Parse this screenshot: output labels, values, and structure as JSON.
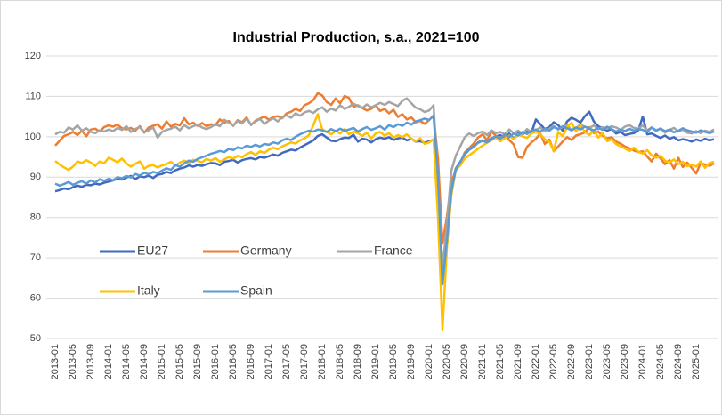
{
  "chart_data": {
    "type": "line",
    "title": "Industrial Production, s.a., 2021=100",
    "categories": [
      "2013-01",
      null,
      null,
      null,
      "2013-05",
      null,
      null,
      null,
      "2013-09",
      null,
      null,
      null,
      "2014-01",
      null,
      null,
      null,
      "2014-05",
      null,
      null,
      null,
      "2014-09",
      null,
      null,
      null,
      "2015-01",
      null,
      null,
      null,
      "2015-05",
      null,
      null,
      null,
      "2015-09",
      null,
      null,
      null,
      "2016-01",
      null,
      null,
      null,
      "2016-05",
      null,
      null,
      null,
      "2016-09",
      null,
      null,
      null,
      "2017-01",
      null,
      null,
      null,
      "2017-05",
      null,
      null,
      null,
      "2017-09",
      null,
      null,
      null,
      "2018-01",
      null,
      null,
      null,
      "2018-05",
      null,
      null,
      null,
      "2018-09",
      null,
      null,
      null,
      "2019-01",
      null,
      null,
      null,
      "2019-05",
      null,
      null,
      null,
      "2019-09",
      null,
      null,
      null,
      "2020-01",
      null,
      null,
      null,
      "2020-05",
      null,
      null,
      null,
      "2020-09",
      null,
      null,
      null,
      "2021-01",
      null,
      null,
      null,
      "2021-05",
      null,
      null,
      null,
      "2021-09",
      null,
      null,
      null,
      "2022-01",
      null,
      null,
      null,
      "2022-05",
      null,
      null,
      null,
      "2022-09",
      null,
      null,
      null,
      "2023-01",
      null,
      null,
      null,
      "2023-05",
      null,
      null,
      null,
      "2023-09",
      null,
      null,
      null,
      "2024-01",
      null,
      null,
      null,
      "2024-05",
      null,
      null,
      null,
      "2024-09",
      null,
      null,
      null,
      "2025-01",
      null,
      null,
      null,
      null
    ],
    "series": [
      {
        "name": "EU27",
        "color": "#4169c0",
        "values": [
          86.5,
          86.8,
          87.2,
          87.0,
          87.5,
          87.9,
          87.6,
          88.1,
          88.0,
          88.4,
          88.2,
          88.6,
          88.9,
          89.2,
          89.6,
          89.4,
          89.9,
          90.3,
          89.5,
          90.2,
          90.0,
          90.4,
          89.8,
          90.6,
          90.8,
          91.3,
          91.0,
          91.7,
          92.1,
          92.4,
          92.9,
          92.6,
          93.0,
          92.8,
          93.2,
          93.5,
          93.4,
          93.0,
          93.8,
          94.0,
          94.3,
          93.6,
          94.2,
          94.5,
          94.7,
          94.4,
          95.0,
          94.8,
          95.2,
          95.6,
          95.3,
          96.0,
          96.4,
          96.8,
          96.6,
          97.3,
          97.9,
          98.5,
          99.1,
          100.2,
          100.6,
          99.8,
          99.0,
          98.9,
          99.4,
          99.8,
          99.7,
          100.5,
          98.8,
          99.5,
          99.3,
          98.6,
          99.4,
          99.8,
          99.5,
          99.9,
          99.2,
          99.6,
          99.8,
          99.1,
          99.5,
          98.8,
          98.9,
          98.5,
          98.9,
          99.3,
          88.5,
          64.2,
          75.8,
          87.9,
          92.1,
          93.8,
          95.6,
          96.8,
          97.5,
          98.6,
          99.1,
          98.7,
          99.6,
          100.1,
          100.4,
          99.7,
          100.8,
          99.5,
          100.9,
          100.6,
          101.3,
          101.0,
          104.3,
          103.1,
          101.9,
          102.4,
          103.6,
          102.9,
          101.5,
          103.8,
          104.7,
          104.2,
          103.5,
          105.1,
          106.2,
          103.8,
          102.6,
          102.1,
          101.5,
          101.9,
          100.8,
          101.2,
          100.4,
          100.7,
          100.9,
          101.6,
          105.0,
          100.6,
          100.8,
          100.2,
          99.7,
          100.3,
          99.5,
          99.9,
          99.1,
          99.4,
          99.2,
          98.8,
          99.3,
          99.0,
          99.5,
          99.1,
          99.4
        ]
      },
      {
        "name": "Germany",
        "color": "#ed7d31",
        "values": [
          97.8,
          99.0,
          100.2,
          100.6,
          101.2,
          100.4,
          101.5,
          100.1,
          101.8,
          102.0,
          101.3,
          102.4,
          102.8,
          102.5,
          103.0,
          102.1,
          101.8,
          102.2,
          101.5,
          102.6,
          101.0,
          102.3,
          102.7,
          103.1,
          102.0,
          103.8,
          102.5,
          103.2,
          102.8,
          104.6,
          103.1,
          103.5,
          102.7,
          103.4,
          102.6,
          103.1,
          102.9,
          104.3,
          103.5,
          103.9,
          102.7,
          104.1,
          103.6,
          104.8,
          102.9,
          104.0,
          104.5,
          105.0,
          104.2,
          104.9,
          105.1,
          104.6,
          105.8,
          106.2,
          106.9,
          106.4,
          107.8,
          108.3,
          109.1,
          110.8,
          110.2,
          108.6,
          107.9,
          109.5,
          108.3,
          110.1,
          109.6,
          107.4,
          107.8,
          107.1,
          106.5,
          106.9,
          107.8,
          106.4,
          106.9,
          105.8,
          106.7,
          104.9,
          105.6,
          104.3,
          104.8,
          103.6,
          103.9,
          103.2,
          104.1,
          105.3,
          94.6,
          73.5,
          80.2,
          88.9,
          91.6,
          93.4,
          96.1,
          97.2,
          98.3,
          99.8,
          100.6,
          99.1,
          101.3,
          100.2,
          99.6,
          100.4,
          99.2,
          98.1,
          95.0,
          94.8,
          97.5,
          98.6,
          99.5,
          100.8,
          98.2,
          99.3,
          96.4,
          97.6,
          98.8,
          99.9,
          99.2,
          100.3,
          100.6,
          101.1,
          102.4,
          100.9,
          101.3,
          100.2,
          99.6,
          99.9,
          98.8,
          98.3,
          97.6,
          97.1,
          96.6,
          96.2,
          96.4,
          95.1,
          93.9,
          95.8,
          94.6,
          93.2,
          94.2,
          92.1,
          94.8,
          92.5,
          93.6,
          92.3,
          90.9,
          93.5,
          93.1,
          92.8,
          93.4
        ]
      },
      {
        "name": "France",
        "color": "#a5a5a5",
        "values": [
          100.6,
          101.2,
          101.0,
          102.3,
          101.8,
          102.8,
          101.5,
          102.1,
          101.2,
          100.9,
          101.6,
          101.3,
          101.8,
          101.4,
          102.2,
          101.7,
          102.6,
          101.2,
          101.9,
          102.4,
          101.1,
          101.6,
          102.3,
          99.8,
          101.2,
          101.7,
          102.0,
          102.5,
          101.6,
          102.9,
          102.1,
          102.6,
          103.0,
          102.3,
          101.9,
          102.4,
          103.1,
          102.6,
          104.2,
          103.5,
          102.8,
          103.9,
          103.3,
          104.5,
          103.0,
          103.8,
          104.4,
          103.2,
          104.0,
          104.6,
          103.8,
          104.9,
          105.3,
          104.7,
          105.8,
          105.2,
          106.0,
          106.4,
          105.9,
          106.8,
          107.3,
          106.2,
          107.0,
          106.5,
          107.8,
          106.9,
          107.4,
          108.2,
          107.6,
          107.1,
          108.0,
          107.3,
          107.8,
          108.4,
          107.9,
          108.6,
          108.1,
          107.6,
          108.9,
          109.5,
          108.3,
          107.2,
          106.8,
          106.1,
          106.5,
          107.8,
          89.4,
          67.2,
          78.4,
          91.6,
          95.3,
          97.6,
          99.9,
          100.8,
          100.2,
          100.9,
          101.3,
          100.4,
          101.6,
          100.9,
          101.2,
          100.6,
          101.8,
          100.9,
          101.5,
          100.7,
          101.9,
          101.1,
          101.6,
          102.3,
          101.4,
          102.0,
          102.7,
          101.8,
          102.4,
          102.9,
          101.6,
          102.2,
          103.0,
          102.5,
          102.1,
          102.8,
          101.9,
          102.4,
          102.0,
          102.6,
          102.3,
          101.7,
          102.5,
          102.9,
          102.2,
          102.0,
          102.8,
          101.6,
          102.3,
          101.4,
          102.1,
          101.0,
          101.7,
          102.2,
          101.3,
          101.8,
          101.0,
          100.8,
          101.4,
          100.9,
          101.5,
          101.2,
          101.8
        ]
      },
      {
        "name": "Italy",
        "color": "#ffc000",
        "values": [
          94.0,
          93.1,
          92.4,
          91.8,
          92.6,
          93.9,
          93.5,
          94.2,
          93.6,
          92.8,
          93.9,
          93.4,
          94.8,
          94.3,
          93.7,
          94.6,
          93.4,
          92.6,
          93.3,
          93.9,
          92.1,
          92.8,
          93.0,
          92.4,
          92.9,
          93.2,
          93.8,
          92.9,
          93.6,
          94.1,
          93.5,
          94.3,
          94.0,
          93.7,
          94.5,
          94.1,
          94.7,
          93.8,
          94.4,
          95.0,
          94.6,
          95.3,
          94.9,
          95.7,
          96.2,
          95.5,
          96.4,
          96.0,
          96.8,
          97.3,
          96.9,
          97.6,
          98.1,
          98.6,
          98.3,
          99.1,
          99.6,
          100.4,
          102.9,
          105.6,
          101.8,
          101.2,
          100.6,
          101.5,
          100.8,
          101.9,
          100.6,
          101.3,
          100.9,
          100.2,
          101.0,
          99.6,
          100.8,
          101.2,
          100.3,
          100.9,
          99.8,
          100.4,
          99.9,
          100.6,
          99.5,
          98.9,
          99.6,
          98.2,
          98.6,
          99.4,
          80.1,
          52.2,
          72.4,
          85.6,
          91.8,
          92.9,
          94.6,
          95.4,
          96.2,
          97.0,
          97.8,
          98.5,
          99.1,
          99.8,
          98.9,
          99.6,
          100.3,
          99.4,
          100.6,
          100.1,
          99.7,
          100.8,
          101.3,
          100.6,
          99.4,
          98.8,
          96.5,
          101.2,
          100.1,
          102.4,
          103.5,
          101.3,
          102.8,
          101.2,
          100.4,
          101.6,
          99.8,
          100.9,
          98.9,
          99.4,
          98.2,
          97.6,
          97.1,
          96.4,
          97.3,
          96.3,
          95.8,
          96.7,
          95.4,
          94.8,
          95.3,
          94.1,
          93.6,
          94.4,
          93.2,
          93.8,
          92.7,
          93.1,
          92.6,
          93.9,
          92.3,
          93.5,
          93.8
        ]
      },
      {
        "name": "Spain",
        "color": "#5b9bd5",
        "values": [
          88.4,
          87.9,
          88.3,
          88.8,
          88.1,
          88.6,
          89.0,
          88.4,
          89.2,
          88.7,
          89.5,
          89.1,
          89.6,
          89.2,
          90.0,
          89.7,
          90.3,
          89.9,
          90.8,
          90.4,
          91.1,
          90.7,
          91.3,
          91.0,
          91.6,
          92.2,
          91.8,
          93.0,
          92.6,
          93.4,
          94.1,
          93.8,
          94.5,
          94.9,
          95.3,
          95.8,
          96.1,
          96.5,
          96.2,
          97.0,
          96.7,
          97.4,
          97.1,
          97.8,
          97.5,
          98.0,
          97.6,
          98.2,
          98.0,
          98.6,
          98.3,
          99.1,
          99.5,
          99.2,
          100.0,
          100.6,
          101.1,
          101.5,
          101.3,
          101.8,
          101.6,
          101.2,
          101.9,
          101.4,
          102.0,
          101.5,
          101.8,
          102.2,
          101.3,
          101.9,
          102.4,
          101.7,
          102.1,
          102.6,
          101.8,
          102.9,
          102.4,
          103.1,
          102.7,
          103.5,
          103.0,
          103.8,
          104.1,
          104.5,
          104.2,
          105.1,
          90.3,
          63.4,
          74.2,
          86.5,
          91.9,
          93.7,
          95.8,
          96.9,
          97.6,
          98.5,
          99.0,
          98.6,
          99.4,
          100.1,
          99.5,
          100.6,
          99.9,
          100.8,
          100.3,
          101.2,
          100.7,
          101.5,
          101.8,
          101.3,
          102.0,
          101.5,
          102.4,
          101.9,
          102.6,
          102.1,
          101.6,
          102.3,
          101.8,
          102.5,
          102.0,
          101.6,
          102.2,
          101.7,
          102.5,
          101.9,
          101.3,
          101.8,
          101.4,
          102.0,
          101.5,
          101.9,
          101.7,
          101.2,
          102.3,
          101.6,
          102.0,
          101.4,
          101.8,
          101.1,
          101.5,
          102.1,
          101.6,
          101.3,
          101.0,
          101.6,
          101.2,
          100.9,
          101.3
        ]
      }
    ],
    "ylim": [
      50,
      120
    ],
    "yticks": [
      50,
      60,
      70,
      80,
      90,
      100,
      110,
      120
    ],
    "grid": true,
    "legend": "left"
  }
}
